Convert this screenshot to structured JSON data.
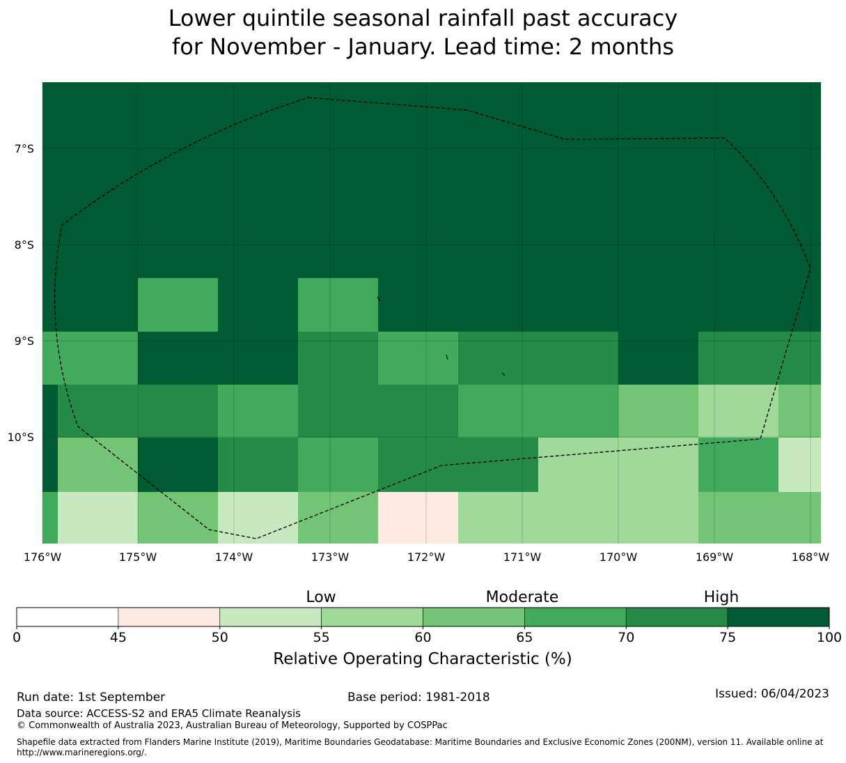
{
  "title": {
    "line1": "Lower quintile seasonal rainfall past accuracy",
    "line2": "for November - January. Lead time: 2 months"
  },
  "map": {
    "x_ticks": [
      "176°W",
      "175°W",
      "174°W",
      "173°W",
      "172°W",
      "171°W",
      "170°W",
      "169°W",
      "168°W"
    ],
    "y_ticks": [
      "7°S",
      "8°S",
      "9°S",
      "10°S"
    ],
    "grid": [
      [
        "h",
        "h",
        "h",
        "h",
        "h",
        "h",
        "h",
        "h",
        "h",
        "h"
      ],
      [
        "h",
        "h",
        "h",
        "h",
        "h",
        "h",
        "h",
        "h",
        "h",
        "h"
      ],
      [
        "h",
        "h",
        "h",
        "h",
        "h",
        "h",
        "h",
        "h",
        "h",
        "h"
      ],
      [
        "h",
        "h",
        "h",
        "h",
        "h",
        "h",
        "h",
        "h",
        "h",
        "h"
      ],
      [
        "h",
        "h",
        "g70",
        "h",
        "g70",
        "h",
        "h",
        "h",
        "h",
        "h"
      ],
      [
        "g70",
        "g70",
        "h",
        "h",
        "g75",
        "g70",
        "g75",
        "g75",
        "h",
        "g75"
      ],
      [
        "h",
        "g75",
        "g75",
        "g70",
        "g75",
        "g75",
        "g70",
        "g70",
        "g65",
        "g60"
      ],
      [
        "h",
        "g65",
        "h",
        "g75",
        "g70",
        "g75",
        "g75",
        "g60",
        "g60",
        "g70"
      ],
      [
        "g70",
        "g55",
        "g65",
        "g55",
        "g65",
        "p50",
        "g60",
        "g60",
        "g60",
        "g65"
      ]
    ],
    "last_column_overrides": [
      [
        "h",
        "h",
        "h",
        "h",
        "h",
        "g75",
        "g65",
        "g55",
        "g65"
      ]
    ]
  },
  "colorbar": {
    "category_labels": [
      "Low",
      "Moderate",
      "High"
    ],
    "tick_labels": [
      "0",
      "45",
      "50",
      "55",
      "60",
      "65",
      "70",
      "75",
      "100"
    ],
    "colors": [
      "#ffffff",
      "#feeae1",
      "#c7e9c0",
      "#a1d99b",
      "#74c476",
      "#41ab5d",
      "#238b45",
      "#005a32"
    ],
    "label": "Relative Operating Characteristic (%)"
  },
  "colors": {
    "h": "#005a32",
    "g75": "#238b45",
    "g70": "#41ab5d",
    "g65": "#74c476",
    "g60": "#a1d99b",
    "g55": "#c7e9c0",
    "p50": "#feeae1"
  },
  "footer": {
    "run_date": "Run date: 1st September",
    "base_period": "Base period: 1981-2018",
    "issued": "Issued: 06/04/2023",
    "data_source": "Data source: ACCESS-S2 and ERA5 Climate Reanalysis",
    "copyright": "© Commonwealth of Australia 2023, Australian Bureau of Meteorology, Supported by COSPPac",
    "shapefile": "Shapefile data extracted from Flanders Marine Institute (2019), Maritime Boundaries Geodatabase: Maritime Boundaries and Exclusive Economic Zones (200NM), version 11. Available online at http://www.marineregions.org/."
  }
}
